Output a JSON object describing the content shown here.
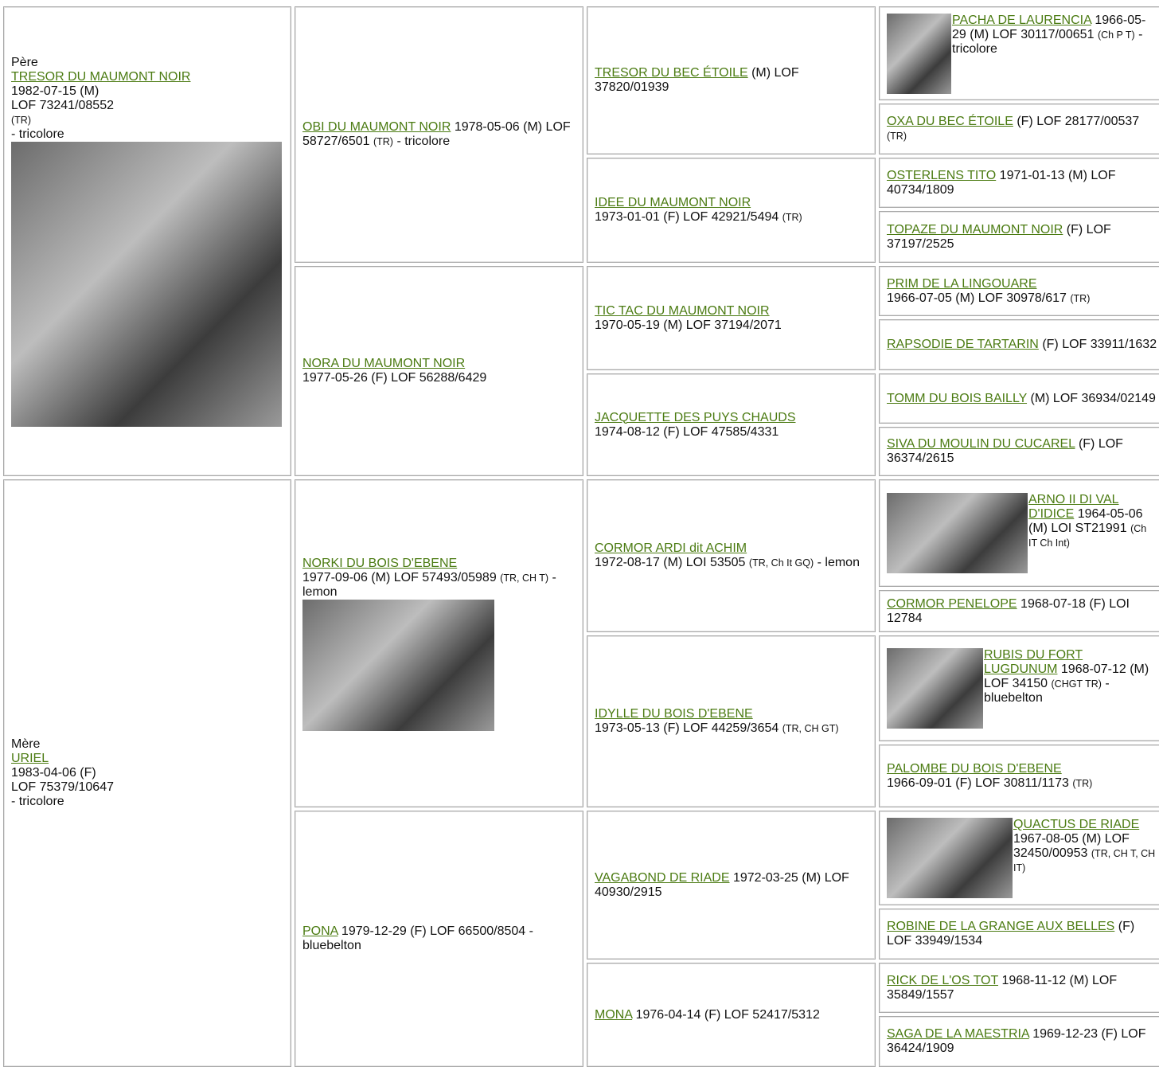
{
  "generation1": [
    {
      "label": "Père",
      "name": "TRESOR DU MAUMONT NOIR",
      "lines": [
        "1982-07-15 (M)",
        "LOF 73241/08552"
      ],
      "small": "(TR)",
      "tail": "- tricolore"
    },
    {
      "label": "Mère",
      "name": "URIEL",
      "lines": [
        "1983-04-06 (F)",
        "LOF 75379/10647"
      ],
      "tail": "- tricolore"
    }
  ],
  "generation2": [
    {
      "name": "OBI DU MAUMONT NOIR",
      "text": "1978-05-06 (M) LOF 58727/6501",
      "small": "(TR)",
      "tail": "- tricolore"
    },
    {
      "name": "NORA DU MAUMONT NOIR",
      "text": "1977-05-26 (F) LOF 56288/6429"
    },
    {
      "name": "NORKI DU BOIS D'EBENE",
      "text": "1977-09-06 (M) LOF 57493/05989",
      "small": "(TR, CH T)",
      "tail": "- lemon"
    },
    {
      "name": "PONA",
      "text": "1979-12-29 (F) LOF 66500/8504",
      "tail": "- bluebelton"
    }
  ],
  "generation3": [
    {
      "name": "TRESOR DU BEC ÉTOILE",
      "text": "(M) LOF 37820/01939"
    },
    {
      "name": "IDEE DU MAUMONT NOIR",
      "text": "1973-01-01 (F) LOF 42921/5494",
      "small": "(TR)"
    },
    {
      "name": "TIC TAC DU MAUMONT NOIR",
      "text": "1970-05-19 (M) LOF 37194/2071"
    },
    {
      "name": "JACQUETTE DES PUYS CHAUDS",
      "text": "1974-08-12 (F) LOF 47585/4331"
    },
    {
      "name": "CORMOR ARDI dit ACHIM",
      "text": "1972-08-17 (M) LOI 53505",
      "small": "(TR, Ch It GQ)",
      "tail": "- lemon"
    },
    {
      "name": "IDYLLE DU BOIS D'EBENE",
      "text": "1973-05-13 (F) LOF 44259/3654",
      "small": "(TR, CH GT)"
    },
    {
      "name": "VAGABOND DE RIADE",
      "text": "1972-03-25 (M) LOF 40930/2915"
    },
    {
      "name": "MONA",
      "text": "1976-04-14 (F) LOF 52417/5312"
    }
  ],
  "generation4": [
    {
      "name": "PACHA DE LAURENCIA",
      "text": "1966-05-29 (M) LOF 30117/00651",
      "small": "(Ch P T)",
      "tail": "- tricolore"
    },
    {
      "name": "OXA DU BEC ÉTOILE",
      "text": "(F) LOF 28177/00537",
      "small": "(TR)"
    },
    {
      "name": "OSTERLENS TITO",
      "text": "1971-01-13 (M) LOF 40734/1809"
    },
    {
      "name": "TOPAZE DU MAUMONT NOIR",
      "text": "(F) LOF 37197/2525"
    },
    {
      "name": "PRIM DE LA LINGOUARE",
      "text": "1966-07-05 (M) LOF 30978/617",
      "small": "(TR)"
    },
    {
      "name": "RAPSODIE DE TARTARIN",
      "text": "(F) LOF 33911/1632"
    },
    {
      "name": "TOMM DU BOIS BAILLY",
      "text": "(M) LOF 36934/02149"
    },
    {
      "name": "SIVA DU MOULIN DU CUCAREL",
      "text": "(F) LOF 36374/2615"
    },
    {
      "name": "ARNO II DI VAL D'IDICE",
      "text": "1964-05-06 (M) LOI ST21991",
      "small": "(Ch IT Ch Int)"
    },
    {
      "name": "CORMOR PENELOPE",
      "text": "1968-07-18 (F) LOI 12784"
    },
    {
      "name": "RUBIS DU FORT LUGDUNUM",
      "text": "1968-07-12 (M) LOF 34150",
      "small": "(CHGT TR)",
      "tail": "- bluebelton"
    },
    {
      "name": "PALOMBE DU BOIS D'EBENE",
      "text": "1966-09-01 (F) LOF 30811/1173",
      "small": "(TR)"
    },
    {
      "name": "QUACTUS DE RIADE",
      "text": "1967-08-05 (M) LOF 32450/00953",
      "small": "(TR, CH T, CH IT)"
    },
    {
      "name": "ROBINE DE LA GRANGE AUX BELLES",
      "text": "(F) LOF 33949/1534"
    },
    {
      "name": "RICK DE L'OS TOT",
      "text": "1968-11-12 (M) LOF 35849/1557"
    },
    {
      "name": "SAGA DE LA MAESTRIA",
      "text": "1969-12-23 (F) LOF 36424/1909"
    }
  ]
}
